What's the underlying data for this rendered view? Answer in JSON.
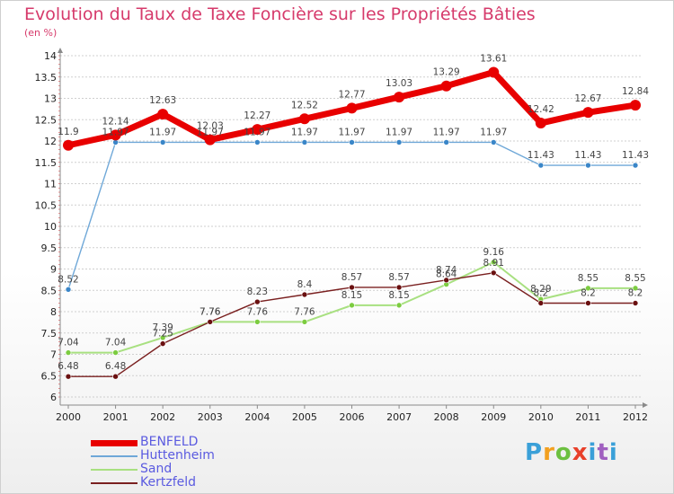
{
  "title": "Evolution du Taux de Taxe Foncière sur les Propriétés Bâties",
  "subtitle": "(en %)",
  "logo": {
    "text": "Proxiti",
    "colors": [
      "#3aa0d8",
      "#f2a020",
      "#6cc040",
      "#e8402a",
      "#3aa0d8",
      "#a060c0",
      "#3aa0d8"
    ]
  },
  "colors": {
    "title": "#d63a6b",
    "legend_text": "#5a5ae0",
    "grid": "#cfcfcf",
    "axis": "#8a8a8a"
  },
  "chart_data": {
    "type": "line",
    "title": "Evolution du Taux de Taxe Foncière sur les Propriétés Bâties",
    "ylabel": "(en %)",
    "xlabel": "",
    "x": [
      "2000",
      "2001",
      "2002",
      "2003",
      "2004",
      "2005",
      "2006",
      "2007",
      "2008",
      "2009",
      "2010",
      "2011",
      "2012"
    ],
    "ylim": [
      6,
      14
    ],
    "yticks": [
      "6",
      "6.5",
      "7",
      "7.5",
      "8",
      "8.5",
      "9",
      "9.5",
      "10",
      "10.5",
      "11",
      "11.5",
      "12",
      "12.5",
      "13",
      "13.5",
      "14"
    ],
    "grid": "horizontal",
    "legend_position": "bottom-left",
    "series": [
      {
        "name": "BENFELD",
        "color": "#e80000",
        "width": 7,
        "marker": "#e80000",
        "values": [
          11.9,
          12.14,
          12.63,
          12.03,
          12.27,
          12.52,
          12.77,
          13.03,
          13.29,
          13.61,
          12.42,
          12.67,
          12.84
        ],
        "labels": [
          "11.9",
          "12.14",
          "12.63",
          "12.03",
          "12.27",
          "12.52",
          "12.77",
          "13.03",
          "13.29",
          "13.61",
          "12.42",
          "12.67",
          "12.84"
        ]
      },
      {
        "name": "Huttenheim",
        "color": "#6fa8d8",
        "width": 1.4,
        "marker": "#3a86c8",
        "values": [
          8.52,
          11.97,
          11.97,
          11.97,
          11.97,
          11.97,
          11.97,
          11.97,
          11.97,
          11.97,
          11.43,
          11.43,
          11.43
        ],
        "labels": [
          "8.52",
          "11.97",
          "11.97",
          "11.97",
          "11.97",
          "11.97",
          "11.97",
          "11.97",
          "11.97",
          "11.97",
          "11.43",
          "11.43",
          "11.43"
        ]
      },
      {
        "name": "Sand",
        "color": "#a8e080",
        "width": 2,
        "marker": "#7ccc40",
        "values": [
          7.04,
          7.04,
          7.39,
          7.76,
          7.76,
          7.76,
          8.15,
          8.15,
          8.64,
          9.16,
          8.29,
          8.55,
          8.55
        ],
        "labels": [
          "7.04",
          "7.04",
          "7.39",
          "7.76",
          "7.76",
          "7.76",
          "8.15",
          "8.15",
          "8.64",
          "9.16",
          "8.29",
          "8.55",
          "8.55"
        ]
      },
      {
        "name": "Kertzfeld",
        "color": "#7a2020",
        "width": 1.4,
        "marker": "#6a1010",
        "values": [
          6.48,
          6.48,
          7.25,
          7.76,
          8.23,
          8.4,
          8.57,
          8.57,
          8.74,
          8.91,
          8.2,
          8.2,
          8.2
        ],
        "labels": [
          "6.48",
          "6.48",
          "7.25",
          "7.76",
          "8.23",
          "8.4",
          "8.57",
          "8.57",
          "8.74",
          "8.91",
          "8.2",
          "8.2",
          "8.2"
        ]
      }
    ]
  }
}
